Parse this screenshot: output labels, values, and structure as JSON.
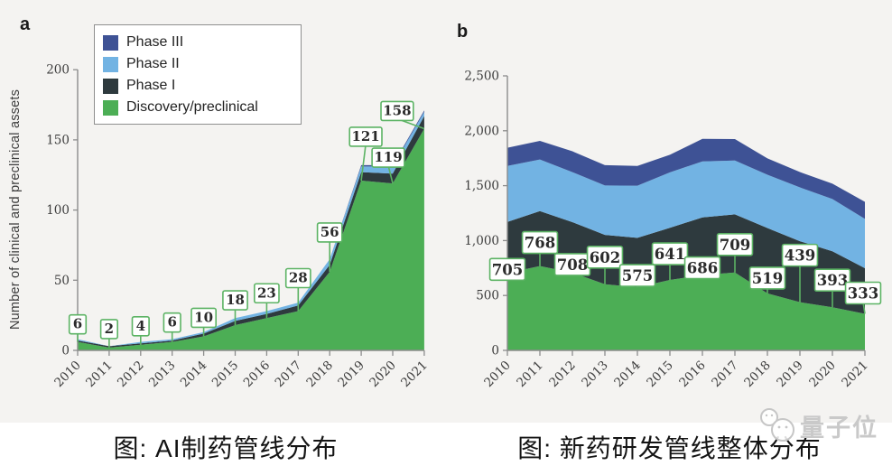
{
  "figure": {
    "background": "#f4f3f1",
    "caption_background": "#ffffff"
  },
  "panel_a": {
    "letter": "a",
    "y_axis_title": "Number of clinical and preclinical assets"
  },
  "panel_b": {
    "letter": "b"
  },
  "legend": {
    "items": [
      {
        "label": "Phase III",
        "color": "#3e5295"
      },
      {
        "label": "Phase II",
        "color": "#72b3e3"
      },
      {
        "label": "Phase I",
        "color": "#2e3a3e"
      },
      {
        "label": "Discovery/preclinical",
        "color": "#4cae55"
      }
    ]
  },
  "captions": {
    "a": "图: AI制药管线分布",
    "b": "图: 新药研发管线整体分布"
  },
  "watermark": {
    "text": "量子位",
    "icon": "qbitai-face-icon"
  },
  "colors": {
    "axis": "#8c8c8c",
    "tick_text": "#3d3d3d",
    "label_box_border": "#5cb364",
    "label_box_fill": "#ffffff",
    "label_text": "#2b2b2b"
  },
  "chart_data": [
    {
      "type": "area",
      "stacked": true,
      "panel": "a",
      "title": "",
      "ylabel": "Number of clinical and preclinical assets",
      "x": [
        "2010",
        "2011",
        "2012",
        "2013",
        "2014",
        "2015",
        "2016",
        "2017",
        "2018",
        "2019",
        "2020",
        "2021"
      ],
      "ylim": [
        0,
        200
      ],
      "yticks": {
        "values": [
          0,
          50,
          100,
          150,
          200
        ],
        "labels": [
          "0",
          "50",
          "100",
          "150",
          "200"
        ]
      },
      "grid": false,
      "legend_position": "top-left",
      "series": [
        {
          "name": "Discovery/preclinical",
          "color": "#4cae55",
          "values": [
            6,
            2,
            4,
            6,
            10,
            18,
            23,
            28,
            56,
            121,
            119,
            158
          ]
        },
        {
          "name": "Phase I",
          "color": "#2e3a3e",
          "values": [
            1,
            1,
            1,
            1,
            2,
            3,
            3,
            4,
            5,
            6,
            7,
            9
          ]
        },
        {
          "name": "Phase II",
          "color": "#72b3e3",
          "values": [
            1,
            0,
            1,
            1,
            1,
            2,
            2,
            2,
            4,
            4,
            5,
            3
          ]
        },
        {
          "name": "Phase III",
          "color": "#3e5295",
          "values": [
            0,
            0,
            0,
            0,
            0,
            0,
            0,
            0,
            0,
            1,
            1,
            1
          ]
        }
      ],
      "point_labels": {
        "series": "Discovery/preclinical",
        "values": [
          "6",
          "2",
          "4",
          "6",
          "10",
          "18",
          "23",
          "28",
          "56",
          "121",
          "119",
          "158"
        ]
      },
      "note": "Phase I/II/III values are visual estimates; labeled values are Discovery/preclinical"
    },
    {
      "type": "area",
      "stacked": true,
      "panel": "b",
      "title": "",
      "ylabel": "",
      "x": [
        "2010",
        "2011",
        "2012",
        "2013",
        "2014",
        "2015",
        "2016",
        "2017",
        "2018",
        "2019",
        "2020",
        "2021"
      ],
      "ylim": [
        0,
        2500
      ],
      "yticks": {
        "values": [
          0,
          500,
          1000,
          1500,
          2000,
          2500
        ],
        "labels": [
          "0",
          "500",
          "1,000",
          "1,500",
          "2,000",
          "2,500"
        ]
      },
      "grid": false,
      "legend_position": "none",
      "series": [
        {
          "name": "Discovery/preclinical",
          "color": "#4cae55",
          "values": [
            705,
            768,
            708,
            602,
            575,
            641,
            686,
            709,
            519,
            439,
            393,
            333
          ]
        },
        {
          "name": "Phase I",
          "color": "#2e3a3e",
          "values": [
            465,
            500,
            460,
            450,
            450,
            475,
            525,
            530,
            595,
            555,
            510,
            415
          ]
        },
        {
          "name": "Phase II",
          "color": "#72b3e3",
          "values": [
            510,
            470,
            455,
            450,
            475,
            505,
            510,
            490,
            485,
            490,
            475,
            450
          ]
        },
        {
          "name": "Phase III",
          "color": "#3e5295",
          "values": [
            165,
            170,
            190,
            185,
            180,
            160,
            205,
            195,
            150,
            140,
            140,
            155
          ]
        }
      ],
      "point_labels": {
        "series": "Discovery/preclinical",
        "values": [
          "705",
          "768",
          "708",
          "602",
          "575",
          "641",
          "686",
          "709",
          "519",
          "439",
          "393",
          "333"
        ]
      },
      "note": "Phase I/II/III values are visual estimates; labeled values are Discovery/preclinical"
    }
  ]
}
